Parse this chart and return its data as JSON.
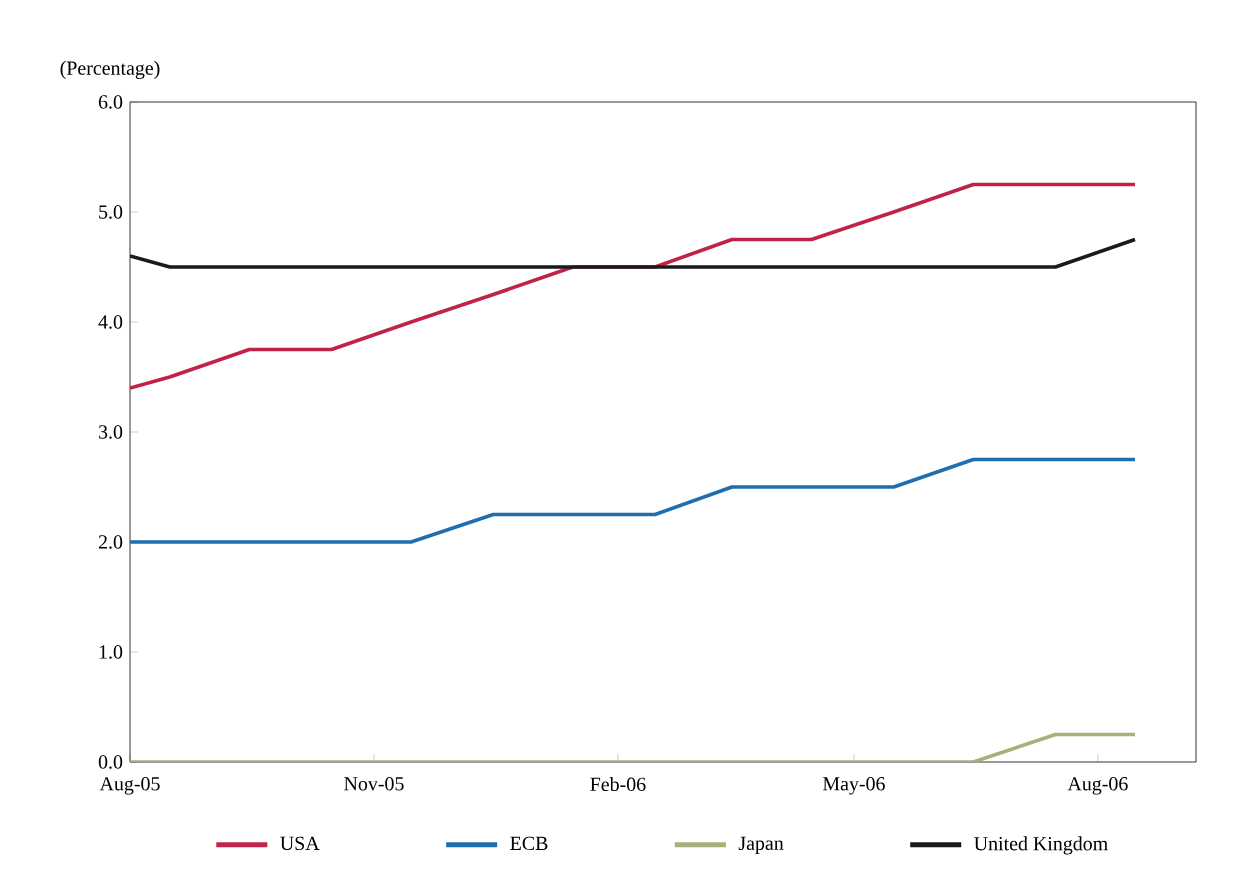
{
  "chart_data": {
    "type": "line",
    "ylabel": "(Percentage)",
    "x": [
      "2005-08-01",
      "2005-08-16",
      "2005-09-15",
      "2005-10-16",
      "2005-11-15",
      "2005-12-16",
      "2006-01-15",
      "2006-02-15",
      "2006-03-16",
      "2006-04-15",
      "2006-05-16",
      "2006-06-15",
      "2006-07-16",
      "2006-08-15"
    ],
    "series": [
      {
        "name": "USA",
        "color": "#c0234a",
        "values": [
          3.4,
          3.5,
          3.75,
          3.75,
          4.0,
          4.25,
          4.5,
          4.5,
          4.75,
          4.75,
          5.0,
          5.25,
          5.25,
          5.25
        ]
      },
      {
        "name": "ECB",
        "color": "#1f6eb0",
        "values": [
          2.0,
          2.0,
          2.0,
          2.0,
          2.0,
          2.25,
          2.25,
          2.25,
          2.5,
          2.5,
          2.5,
          2.75,
          2.75,
          2.75
        ]
      },
      {
        "name": "Japan",
        "color": "#a6b07a",
        "values": [
          0,
          0,
          0,
          0,
          0,
          0,
          0,
          0,
          0,
          0,
          0,
          0,
          0.25,
          0.25
        ]
      },
      {
        "name": "United Kingdom",
        "color": "#1a1a1a",
        "values": [
          4.6,
          4.5,
          4.5,
          4.5,
          4.5,
          4.5,
          4.5,
          4.5,
          4.5,
          4.5,
          4.5,
          4.5,
          4.5,
          4.75
        ]
      }
    ],
    "xlim": [
      "2005-08-01",
      "2006-09-07"
    ],
    "ylim": [
      0,
      6
    ],
    "xticks": [
      {
        "value": "2005-08-01",
        "label": "Aug-05"
      },
      {
        "value": "2005-11-01",
        "label": "Nov-05"
      },
      {
        "value": "2006-02-01",
        "label": "Feb-06"
      },
      {
        "value": "2006-05-01",
        "label": "May-06"
      },
      {
        "value": "2006-08-01",
        "label": "Aug-06"
      }
    ],
    "yticks": [
      {
        "value": 0,
        "label": "0.0"
      },
      {
        "value": 1,
        "label": "1.0"
      },
      {
        "value": 2,
        "label": "2.0"
      },
      {
        "value": 3,
        "label": "3.0"
      },
      {
        "value": 4,
        "label": "4.0"
      },
      {
        "value": 5,
        "label": "5.0"
      },
      {
        "value": 6,
        "label": "6.0"
      }
    ],
    "grid": false,
    "legend": "bottom",
    "marker": "none",
    "line_style": "solid"
  }
}
